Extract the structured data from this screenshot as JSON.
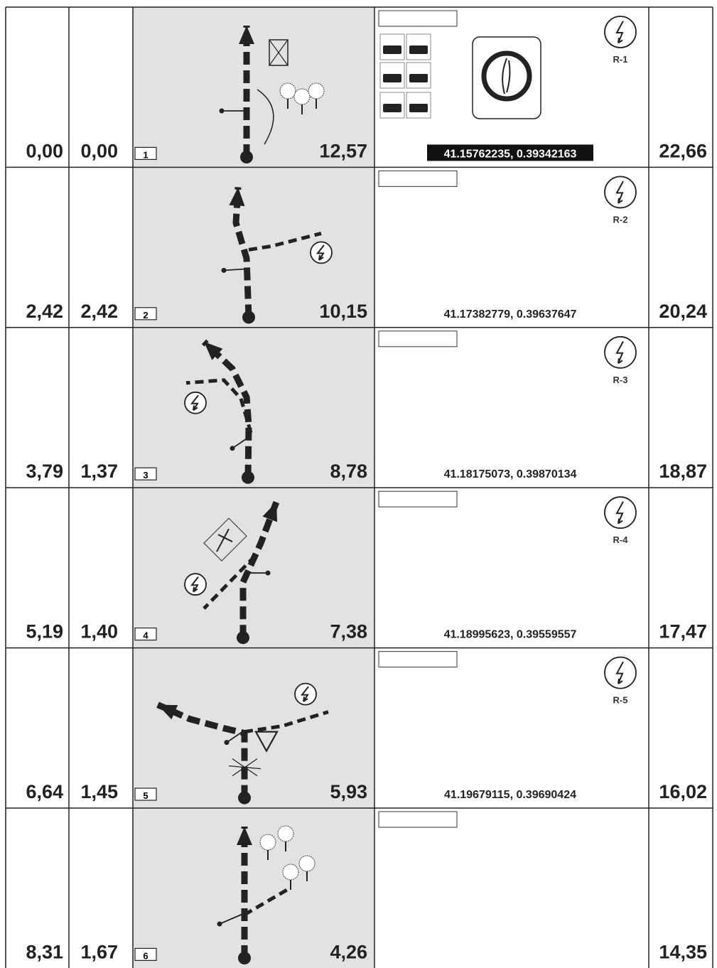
{
  "rows": [
    {
      "total": "0,00",
      "partial": "0,00",
      "box": "1",
      "distance": "12,57",
      "coordinates": "41.15762235, 0.39342163",
      "reference": "R-1",
      "remaining": "22,66"
    },
    {
      "total": "2,42",
      "partial": "2,42",
      "box": "2",
      "distance": "10,15",
      "coordinates": "41.17382779, 0.39637647",
      "reference": "R-2",
      "remaining": "20,24"
    },
    {
      "total": "3,79",
      "partial": "1,37",
      "box": "3",
      "distance": "8,78",
      "coordinates": "41.18175073, 0.39870134",
      "reference": "R-3",
      "remaining": "18,87"
    },
    {
      "total": "5,19",
      "partial": "1,40",
      "box": "4",
      "distance": "7,38",
      "coordinates": "41.18995623, 0.39559557",
      "reference": "R-4",
      "remaining": "17,47"
    },
    {
      "total": "6,64",
      "partial": "1,45",
      "box": "5",
      "distance": "5,93",
      "coordinates": "41.19679115, 0.39690424",
      "reference": "R-5",
      "remaining": "16,02"
    },
    {
      "total": "8,31",
      "partial": "1,67",
      "box": "6",
      "distance": "4,26",
      "remaining": "14,35"
    }
  ]
}
